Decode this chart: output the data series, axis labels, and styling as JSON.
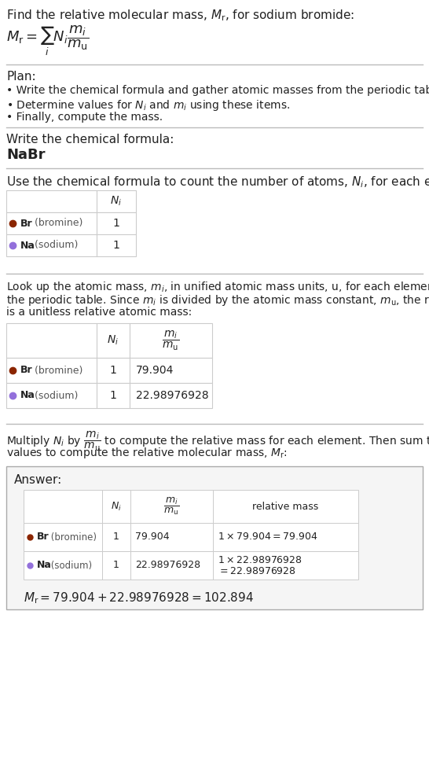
{
  "title_text": "Find the relative molecular mass, $M_{\\mathrm{r}}$, for sodium bromide:",
  "formula_text": "$M_{\\mathrm{r}} = \\sum_{i} N_i \\dfrac{m_i}{m_{\\mathrm{u}}}$",
  "plan_header": "Plan:",
  "plan_bullets": [
    "• Write the chemical formula and gather atomic masses from the periodic table.",
    "• Determine values for $N_i$ and $m_i$ using these items.",
    "• Finally, compute the mass."
  ],
  "step1_header": "Write the chemical formula:",
  "step1_formula": "NaBr",
  "step2_header": "Use the chemical formula to count the number of atoms, $N_i$, for each element:",
  "table1_col_header": "$N_i$",
  "table1_rows": [
    {
      "element": "Br (bromine)",
      "color": "#8B2500",
      "Ni": "1"
    },
    {
      "element": "Na (sodium)",
      "color": "#9370DB",
      "Ni": "1"
    }
  ],
  "step3_lines": [
    "Look up the atomic mass, $m_i$, in unified atomic mass units, u, for each element in",
    "the periodic table. Since $m_i$ is divided by the atomic mass constant, $m_{\\mathrm{u}}$, the result",
    "is a unitless relative atomic mass:"
  ],
  "table2_col_headers": [
    "$N_i$",
    "$\\dfrac{m_i}{m_{\\mathrm{u}}}$"
  ],
  "table2_rows": [
    {
      "element": "Br (bromine)",
      "color": "#8B2500",
      "Ni": "1",
      "mi": "79.904"
    },
    {
      "element": "Na (sodium)",
      "color": "#9370DB",
      "Ni": "1",
      "mi": "22.98976928"
    }
  ],
  "step4_lines": [
    "Multiply $N_i$ by $\\dfrac{m_i}{m_{\\mathrm{u}}}$ to compute the relative mass for each element. Then sum those",
    "values to compute the relative molecular mass, $M_{\\mathrm{r}}$:"
  ],
  "answer_label": "Answer:",
  "table3_col_headers": [
    "$N_i$",
    "$\\dfrac{m_i}{m_{\\mathrm{u}}}$",
    "relative mass"
  ],
  "table3_rows": [
    {
      "element": "Br (bromine)",
      "color": "#8B2500",
      "Ni": "1",
      "mi": "79.904",
      "rel": "$1 \\times 79.904 = 79.904$",
      "rel2": null
    },
    {
      "element": "Na (sodium)",
      "color": "#9370DB",
      "Ni": "1",
      "mi": "22.98976928",
      "rel": "$1 \\times 22.98976928$",
      "rel2": "$= 22.98976928$"
    }
  ],
  "final_eq": "$M_{\\mathrm{r}} = 79.904 + 22.98976928 = 102.894$",
  "bg_color": "#ffffff",
  "answer_bg": "#f5f5f5",
  "border_color": "#cccccc",
  "text_color": "#222222",
  "separator_color": "#bbbbbb"
}
